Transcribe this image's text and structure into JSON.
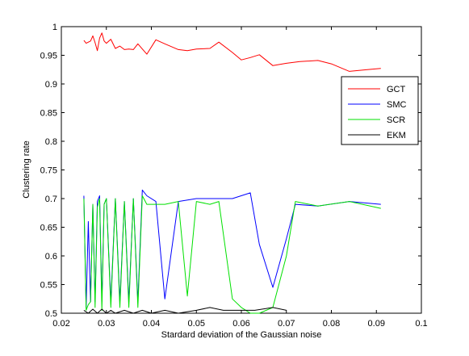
{
  "chart_data": {
    "type": "line",
    "title": "",
    "xlabel": "Stardard deviation of the Gaussian noise",
    "ylabel": "Clustering rate",
    "xlim": [
      0.02,
      0.1
    ],
    "ylim": [
      0.5,
      1.0
    ],
    "xticks": [
      0.02,
      0.03,
      0.04,
      0.05,
      0.06,
      0.07,
      0.08,
      0.09,
      0.1
    ],
    "xtick_labels": [
      "0.02",
      "0.03",
      "0.04",
      "0.05",
      "0.06",
      "0.07",
      "0.08",
      "0.09",
      "0.1"
    ],
    "yticks": [
      0.5,
      0.55,
      0.6,
      0.65,
      0.7,
      0.75,
      0.8,
      0.85,
      0.9,
      0.95,
      1.0
    ],
    "ytick_labels": [
      "0.5",
      "0.55",
      "0.6",
      "0.65",
      "0.7",
      "0.75",
      "0.8",
      "0.85",
      "0.9",
      "0.95",
      "1"
    ],
    "grid": false,
    "legend_position": "top-right",
    "series": [
      {
        "name": "GCT",
        "color": "#ff0000",
        "x": [
          0.025,
          0.0255,
          0.0265,
          0.027,
          0.0275,
          0.028,
          0.0285,
          0.029,
          0.0295,
          0.03,
          0.031,
          0.032,
          0.033,
          0.034,
          0.035,
          0.036,
          0.037,
          0.038,
          0.039,
          0.041,
          0.043,
          0.046,
          0.048,
          0.05,
          0.053,
          0.055,
          0.058,
          0.06,
          0.062,
          0.064,
          0.067,
          0.07,
          0.073,
          0.077,
          0.08,
          0.084,
          0.088,
          0.091
        ],
        "y": [
          0.976,
          0.971,
          0.975,
          0.984,
          0.972,
          0.958,
          0.98,
          0.989,
          0.975,
          0.971,
          0.978,
          0.962,
          0.966,
          0.96,
          0.961,
          0.96,
          0.97,
          0.961,
          0.952,
          0.977,
          0.97,
          0.96,
          0.958,
          0.961,
          0.962,
          0.973,
          0.955,
          0.942,
          0.946,
          0.951,
          0.932,
          0.936,
          0.939,
          0.941,
          0.935,
          0.922,
          0.925,
          0.927
        ]
      },
      {
        "name": "SMC",
        "color": "#0000ff",
        "x": [
          0.025,
          0.0255,
          0.026,
          0.0265,
          0.027,
          0.0275,
          0.028,
          0.0285,
          0.029,
          0.0295,
          0.03,
          0.031,
          0.032,
          0.033,
          0.034,
          0.035,
          0.036,
          0.037,
          0.038,
          0.039,
          0.041,
          0.043,
          0.046,
          0.05,
          0.055,
          0.058,
          0.062,
          0.064,
          0.067,
          0.07,
          0.072,
          0.077,
          0.084,
          0.091
        ],
        "y": [
          0.705,
          0.51,
          0.66,
          0.52,
          0.69,
          0.52,
          0.695,
          0.705,
          0.52,
          0.69,
          0.7,
          0.52,
          0.7,
          0.52,
          0.695,
          0.52,
          0.7,
          0.52,
          0.715,
          0.705,
          0.695,
          0.525,
          0.695,
          0.7,
          0.7,
          0.7,
          0.71,
          0.62,
          0.545,
          0.63,
          0.69,
          0.687,
          0.695,
          0.69
        ]
      },
      {
        "name": "SCR",
        "color": "#00e000",
        "x": [
          0.025,
          0.0255,
          0.026,
          0.0265,
          0.027,
          0.0275,
          0.028,
          0.0285,
          0.029,
          0.0295,
          0.03,
          0.031,
          0.032,
          0.033,
          0.034,
          0.035,
          0.036,
          0.037,
          0.038,
          0.039,
          0.041,
          0.043,
          0.046,
          0.048,
          0.05,
          0.053,
          0.055,
          0.058,
          0.06,
          0.062,
          0.064,
          0.067,
          0.07,
          0.072,
          0.077,
          0.084,
          0.091
        ],
        "y": [
          0.7,
          0.505,
          0.515,
          0.52,
          0.69,
          0.51,
          0.685,
          0.7,
          0.505,
          0.69,
          0.7,
          0.51,
          0.7,
          0.51,
          0.695,
          0.51,
          0.7,
          0.51,
          0.705,
          0.69,
          0.69,
          0.69,
          0.695,
          0.53,
          0.695,
          0.69,
          0.695,
          0.525,
          0.51,
          0.5,
          0.5,
          0.51,
          0.6,
          0.695,
          0.687,
          0.695,
          0.683
        ]
      },
      {
        "name": "EKM",
        "color": "#000000",
        "x": [
          0.025,
          0.026,
          0.027,
          0.028,
          0.029,
          0.03,
          0.031,
          0.032,
          0.034,
          0.036,
          0.038,
          0.04,
          0.043,
          0.046,
          0.05,
          0.053,
          0.056,
          0.06,
          0.063,
          0.067,
          0.07
        ],
        "y": [
          0.505,
          0.5,
          0.507,
          0.5,
          0.507,
          0.5,
          0.505,
          0.5,
          0.505,
          0.5,
          0.505,
          0.5,
          0.505,
          0.5,
          0.505,
          0.51,
          0.505,
          0.505,
          0.505,
          0.51,
          0.505
        ]
      }
    ]
  }
}
